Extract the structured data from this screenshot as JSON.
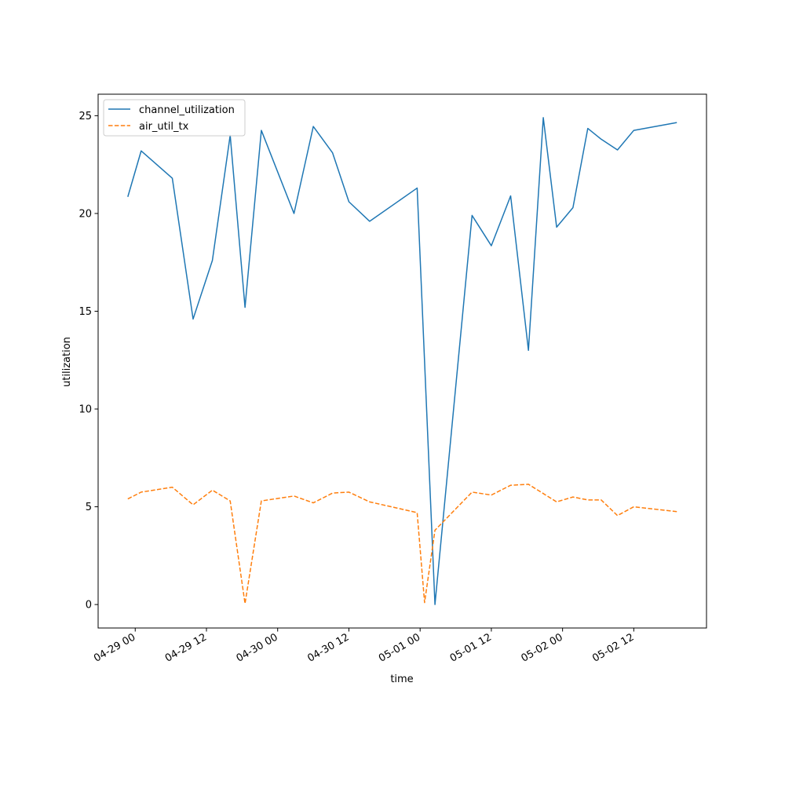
{
  "chart_data": {
    "type": "line",
    "xlabel": "time",
    "ylabel": "utilization",
    "x_tick_labels": [
      "04-29 00",
      "04-29 12",
      "04-30 00",
      "04-30 12",
      "05-01 00",
      "05-01 12",
      "05-02 00",
      "05-02 12"
    ],
    "x_ticks": [
      "2024-04-29 00:00",
      "2024-04-29 12:00",
      "2024-04-30 00:00",
      "2024-04-30 12:00",
      "2024-05-01 00:00",
      "2024-05-01 12:00",
      "2024-05-02 00:00",
      "2024-05-02 12:00"
    ],
    "xlim": [
      "2024-04-28 17:45",
      "2024-05-03 00:15"
    ],
    "ylim": [
      -1.2,
      26.1
    ],
    "y_ticks": [
      0,
      5,
      10,
      15,
      20,
      25
    ],
    "grid": false,
    "legend_placement": "top-left",
    "series": [
      {
        "name": "channel_utilization",
        "color": "#1f77b4",
        "dash": "solid",
        "points": [
          {
            "x": "2024-04-28 22:45",
            "y": 20.85
          },
          {
            "x": "2024-04-29 01:00",
            "y": 23.2
          },
          {
            "x": "2024-04-29 06:15",
            "y": 21.8
          },
          {
            "x": "2024-04-29 09:45",
            "y": 14.6
          },
          {
            "x": "2024-04-29 13:00",
            "y": 17.6
          },
          {
            "x": "2024-04-29 16:00",
            "y": 24.0
          },
          {
            "x": "2024-04-29 18:30",
            "y": 15.2
          },
          {
            "x": "2024-04-29 21:15",
            "y": 24.25
          },
          {
            "x": "2024-04-30 02:45",
            "y": 20.0
          },
          {
            "x": "2024-04-30 06:00",
            "y": 24.45
          },
          {
            "x": "2024-04-30 09:15",
            "y": 23.1
          },
          {
            "x": "2024-04-30 12:00",
            "y": 20.6
          },
          {
            "x": "2024-04-30 15:30",
            "y": 19.6
          },
          {
            "x": "2024-04-30 23:30",
            "y": 21.3
          },
          {
            "x": "2024-05-01 02:30",
            "y": 0.0
          },
          {
            "x": "2024-05-01 08:45",
            "y": 19.9
          },
          {
            "x": "2024-05-01 12:00",
            "y": 18.35
          },
          {
            "x": "2024-05-01 15:15",
            "y": 20.9
          },
          {
            "x": "2024-05-01 18:15",
            "y": 13.0
          },
          {
            "x": "2024-05-01 20:45",
            "y": 24.9
          },
          {
            "x": "2024-05-01 23:00",
            "y": 19.3
          },
          {
            "x": "2024-05-02 01:45",
            "y": 20.3
          },
          {
            "x": "2024-05-02 04:15",
            "y": 24.35
          },
          {
            "x": "2024-05-02 06:30",
            "y": 23.8
          },
          {
            "x": "2024-05-02 09:15",
            "y": 23.25
          },
          {
            "x": "2024-05-02 12:00",
            "y": 24.25
          },
          {
            "x": "2024-05-02 19:15",
            "y": 24.65
          }
        ]
      },
      {
        "name": "air_util_tx",
        "color": "#ff7f0e",
        "dash": "dashed",
        "points": [
          {
            "x": "2024-04-28 22:45",
            "y": 5.4
          },
          {
            "x": "2024-04-29 01:00",
            "y": 5.75
          },
          {
            "x": "2024-04-29 06:15",
            "y": 6.0
          },
          {
            "x": "2024-04-29 09:45",
            "y": 5.1
          },
          {
            "x": "2024-04-29 13:00",
            "y": 5.85
          },
          {
            "x": "2024-04-29 16:00",
            "y": 5.3
          },
          {
            "x": "2024-04-29 18:30",
            "y": 0.05
          },
          {
            "x": "2024-04-29 21:15",
            "y": 5.3
          },
          {
            "x": "2024-04-30 02:45",
            "y": 5.55
          },
          {
            "x": "2024-04-30 06:00",
            "y": 5.2
          },
          {
            "x": "2024-04-30 09:15",
            "y": 5.7
          },
          {
            "x": "2024-04-30 12:00",
            "y": 5.75
          },
          {
            "x": "2024-04-30 15:30",
            "y": 5.25
          },
          {
            "x": "2024-04-30 23:30",
            "y": 4.7
          },
          {
            "x": "2024-05-01 00:45",
            "y": 0.1
          },
          {
            "x": "2024-05-01 02:30",
            "y": 3.8
          },
          {
            "x": "2024-05-01 08:45",
            "y": 5.75
          },
          {
            "x": "2024-05-01 12:00",
            "y": 5.6
          },
          {
            "x": "2024-05-01 15:15",
            "y": 6.1
          },
          {
            "x": "2024-05-01 18:15",
            "y": 6.15
          },
          {
            "x": "2024-05-01 23:00",
            "y": 5.25
          },
          {
            "x": "2024-05-02 01:45",
            "y": 5.5
          },
          {
            "x": "2024-05-02 04:15",
            "y": 5.35
          },
          {
            "x": "2024-05-02 06:30",
            "y": 5.35
          },
          {
            "x": "2024-05-02 09:15",
            "y": 4.55
          },
          {
            "x": "2024-05-02 12:00",
            "y": 5.0
          },
          {
            "x": "2024-05-02 19:15",
            "y": 4.75
          }
        ]
      }
    ]
  }
}
